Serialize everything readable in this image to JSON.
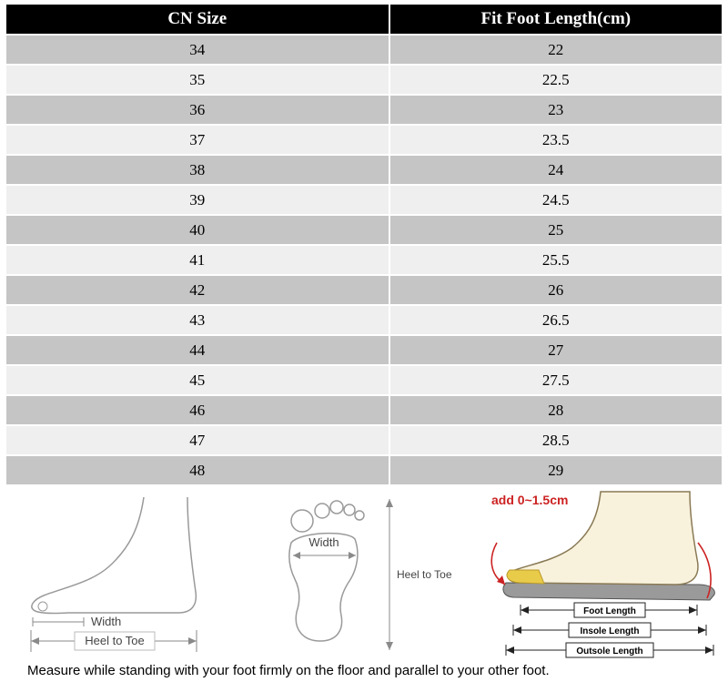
{
  "chart_data": {
    "type": "table",
    "columns": [
      "CN Size",
      "Fit Foot Length(cm)"
    ],
    "rows": [
      [
        34,
        22
      ],
      [
        35,
        22.5
      ],
      [
        36,
        23
      ],
      [
        37,
        23.5
      ],
      [
        38,
        24
      ],
      [
        39,
        24.5
      ],
      [
        40,
        25
      ],
      [
        41,
        25.5
      ],
      [
        42,
        26
      ],
      [
        43,
        26.5
      ],
      [
        44,
        27
      ],
      [
        45,
        27.5
      ],
      [
        46,
        28
      ],
      [
        47,
        28.5
      ],
      [
        48,
        29
      ]
    ]
  },
  "diagrams": {
    "side_view": {
      "width_label": "Width",
      "heel_to_toe_label": "Heel to Toe"
    },
    "footprint": {
      "width_label": "Width",
      "heel_to_toe_label": "Heel to Toe"
    },
    "foot_length": {
      "add_label": "add 0~1.5cm",
      "foot_length_label": "Foot Length",
      "insole_length_label": "Insole Length",
      "outsole_length_label": "Outsole Length"
    }
  },
  "footer": {
    "note": "Measure while standing with your foot firmly on the floor and parallel to your other foot."
  },
  "colors": {
    "header_bg": "#000000",
    "header_text": "#ffffff",
    "row_dark": "#c5c5c5",
    "row_light": "#efefef",
    "accent_red": "#cc2222",
    "sole_gray": "#9a9a9a",
    "foot_cream": "#f8f2dd",
    "toe_yellow": "#e9cb4a"
  }
}
